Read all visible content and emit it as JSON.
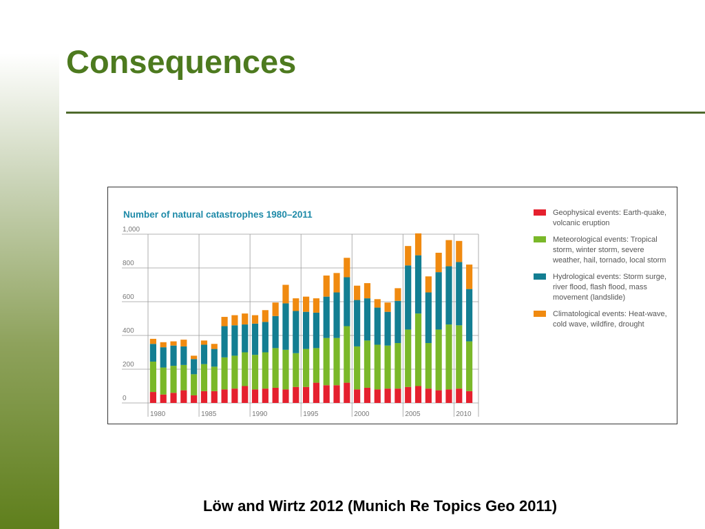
{
  "slide": {
    "title": "Consequences",
    "citation": "Löw and Wirtz 2012 (Munich Re Topics Geo 2011)"
  },
  "colors": {
    "title": "#4d7a1f",
    "geophysical": "#e5202e",
    "meteorological": "#7ab829",
    "hydrological": "#137e92",
    "climatological": "#f08a10",
    "chart_title": "#1e8aa8"
  },
  "chart_data": {
    "type": "bar",
    "stacked": true,
    "title": "Number of natural catastrophes 1980–2011",
    "xlabel": "",
    "ylabel": "",
    "ylim": [
      0,
      1000
    ],
    "yticks": [
      "0",
      "200",
      "400",
      "600",
      "800",
      "1,000"
    ],
    "xtick_labels": [
      "1980",
      "1985",
      "1990",
      "1995",
      "2000",
      "2005",
      "2010"
    ],
    "grid": true,
    "legend_position": "right",
    "categories": [
      1980,
      1981,
      1982,
      1983,
      1984,
      1985,
      1986,
      1987,
      1988,
      1989,
      1990,
      1991,
      1992,
      1993,
      1994,
      1995,
      1996,
      1997,
      1998,
      1999,
      2000,
      2001,
      2002,
      2003,
      2004,
      2005,
      2006,
      2007,
      2008,
      2009,
      2010,
      2011
    ],
    "series": [
      {
        "name": "Geophysical events: Earth-quake, volcanic eruption",
        "values": [
          65,
          50,
          60,
          75,
          45,
          70,
          70,
          80,
          85,
          100,
          80,
          85,
          90,
          80,
          95,
          95,
          120,
          105,
          105,
          120,
          80,
          90,
          80,
          85,
          85,
          95,
          100,
          85,
          75,
          80,
          85,
          70
        ]
      },
      {
        "name": "Meteorological events: Tropical storm, winter storm, severe weather, hail, tornado, local storm",
        "values": [
          180,
          160,
          160,
          150,
          125,
          160,
          145,
          190,
          195,
          200,
          205,
          215,
          235,
          235,
          200,
          225,
          205,
          280,
          280,
          335,
          255,
          280,
          265,
          255,
          270,
          340,
          430,
          270,
          360,
          385,
          375,
          295
        ]
      },
      {
        "name": "Hydrological events: Storm surge, river flood, flash flood, mass movement (landslide)",
        "values": [
          105,
          120,
          120,
          110,
          90,
          115,
          105,
          185,
          180,
          165,
          185,
          180,
          190,
          275,
          250,
          220,
          210,
          245,
          270,
          290,
          275,
          250,
          220,
          200,
          250,
          380,
          345,
          300,
          340,
          345,
          375,
          310
        ]
      },
      {
        "name": "Climatological events: Heat-wave, cold wave, wildfire, drought",
        "values": [
          30,
          30,
          25,
          40,
          20,
          25,
          30,
          55,
          60,
          65,
          50,
          70,
          80,
          110,
          75,
          90,
          85,
          125,
          115,
          115,
          85,
          90,
          50,
          55,
          75,
          115,
          130,
          95,
          115,
          155,
          125,
          145
        ]
      }
    ]
  }
}
